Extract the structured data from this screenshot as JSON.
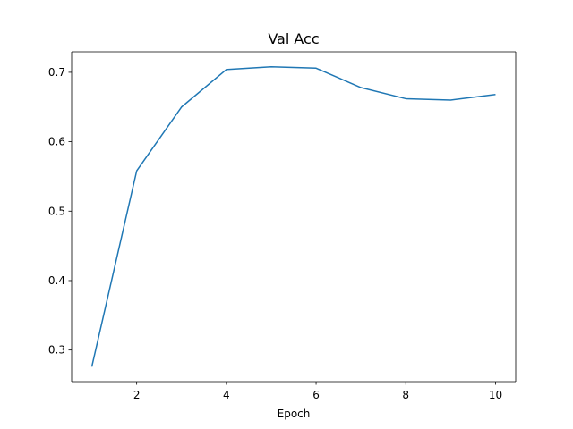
{
  "chart_data": {
    "type": "line",
    "title": "Val Acc",
    "xlabel": "Epoch",
    "ylabel": "",
    "xlim": [
      0.55,
      10.45
    ],
    "ylim": [
      0.2545,
      0.7295
    ],
    "x_ticks": [
      2,
      4,
      6,
      8,
      10
    ],
    "y_ticks": [
      0.3,
      0.4,
      0.5,
      0.6,
      0.7
    ],
    "x_tick_labels": [
      "2",
      "4",
      "6",
      "8",
      "10"
    ],
    "y_tick_labels": [
      "0.3",
      "0.4",
      "0.5",
      "0.6",
      "0.7"
    ],
    "grid": false,
    "series": [
      {
        "name": "Val Acc",
        "color": "#1f77b4",
        "x": [
          1,
          2,
          3,
          4,
          5,
          6,
          7,
          8,
          9,
          10
        ],
        "values": [
          0.276,
          0.558,
          0.65,
          0.704,
          0.708,
          0.706,
          0.678,
          0.662,
          0.66,
          0.668
        ]
      }
    ]
  }
}
